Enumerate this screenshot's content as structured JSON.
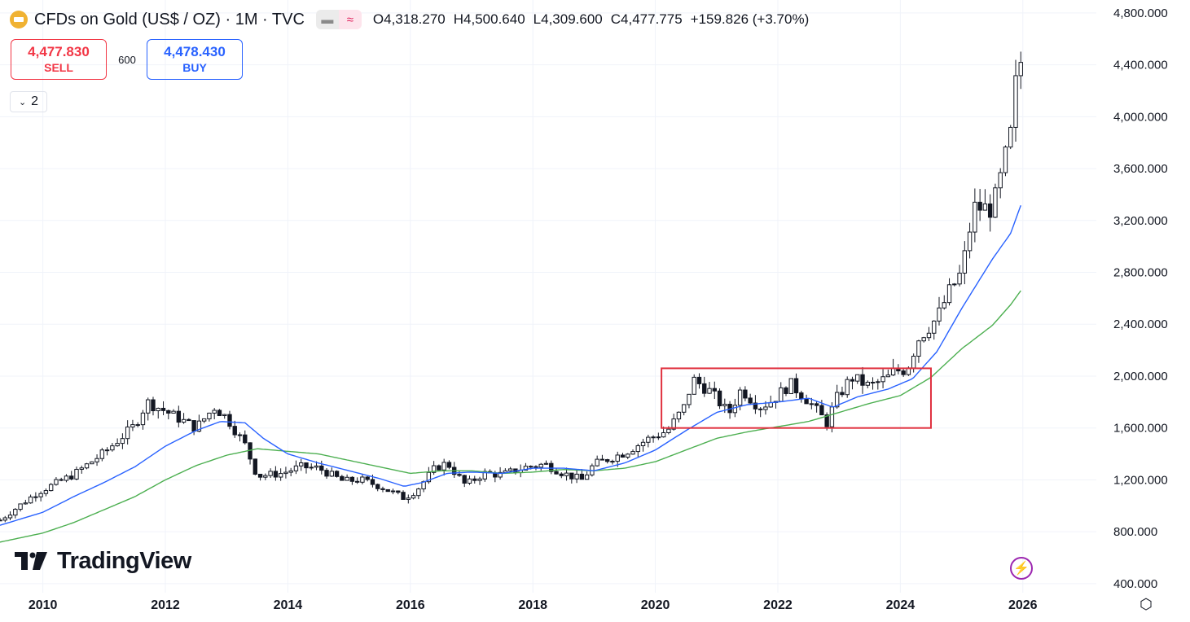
{
  "header": {
    "symbol_title": "CFDs on Gold (US$ / OZ) · 1M · TVC",
    "icon": "gold-bars-icon",
    "open": "O4,318.270",
    "high": "H4,500.640",
    "low": "L4,309.600",
    "close": "C4,477.775",
    "change": "+159.826 (+3.70%)",
    "toggle_icons": [
      "minus-icon",
      "wave-icon"
    ]
  },
  "trade": {
    "sell_price": "4,477.830",
    "sell_label": "SELL",
    "buy_price": "4,478.430",
    "buy_label": "BUY",
    "spread": "600"
  },
  "indicators": {
    "count": "2"
  },
  "branding": {
    "logo_text": "TradingView"
  },
  "colors": {
    "up": "#131722",
    "down": "#131722",
    "ma_fast": "#2962ff",
    "ma_slow": "#4caf50",
    "highlight_box": "#e0313f",
    "sell": "#f23645",
    "buy": "#2962ff"
  },
  "chart_data": {
    "type": "candlestick",
    "x_axis_labels": [
      "2010",
      "2012",
      "2014",
      "2016",
      "2018",
      "2020",
      "2022",
      "2024",
      "2026"
    ],
    "y_axis_labels": [
      "4,800.000",
      "4,400.000",
      "4,000.000",
      "3,600.000",
      "3,200.000",
      "2,800.000",
      "2,400.000",
      "2,000.000",
      "1,600.000",
      "1,200.000",
      "800.000",
      "400.000"
    ],
    "y_ticks": [
      4800,
      4400,
      4000,
      3600,
      3200,
      2800,
      2400,
      2000,
      1600,
      1200,
      800,
      400
    ],
    "x_ticks": [
      2010,
      2012,
      2014,
      2016,
      2018,
      2020,
      2022,
      2024,
      2026
    ],
    "xlim": [
      2009.3,
      2027.2
    ],
    "ylim": [
      330,
      4900
    ],
    "candles_monthly_close_anchors": [
      [
        2009.3,
        890
      ],
      [
        2009.9,
        1100
      ],
      [
        2010.5,
        1240
      ],
      [
        2011.0,
        1410
      ],
      [
        2011.5,
        1620
      ],
      [
        2011.7,
        1800
      ],
      [
        2012.0,
        1730
      ],
      [
        2012.5,
        1600
      ],
      [
        2012.8,
        1760
      ],
      [
        2013.0,
        1680
      ],
      [
        2013.3,
        1470
      ],
      [
        2013.5,
        1230
      ],
      [
        2013.9,
        1250
      ],
      [
        2014.2,
        1300
      ],
      [
        2014.5,
        1290
      ],
      [
        2014.9,
        1190
      ],
      [
        2015.2,
        1200
      ],
      [
        2015.5,
        1150
      ],
      [
        2015.9,
        1060
      ],
      [
        2016.1,
        1120
      ],
      [
        2016.4,
        1290
      ],
      [
        2016.6,
        1330
      ],
      [
        2016.9,
        1160
      ],
      [
        2017.2,
        1250
      ],
      [
        2017.5,
        1240
      ],
      [
        2017.9,
        1300
      ],
      [
        2018.2,
        1320
      ],
      [
        2018.5,
        1250
      ],
      [
        2018.8,
        1200
      ],
      [
        2019.0,
        1320
      ],
      [
        2019.5,
        1410
      ],
      [
        2019.9,
        1520
      ],
      [
        2020.2,
        1580
      ],
      [
        2020.5,
        1780
      ],
      [
        2020.6,
        1980
      ],
      [
        2020.9,
        1880
      ],
      [
        2021.2,
        1710
      ],
      [
        2021.4,
        1900
      ],
      [
        2021.7,
        1760
      ],
      [
        2021.9,
        1810
      ],
      [
        2022.2,
        1940
      ],
      [
        2022.5,
        1810
      ],
      [
        2022.8,
        1640
      ],
      [
        2022.95,
        1820
      ],
      [
        2023.2,
        1990
      ],
      [
        2023.5,
        1920
      ],
      [
        2023.8,
        1990
      ],
      [
        2023.9,
        2040
      ],
      [
        2024.1,
        2050
      ],
      [
        2024.3,
        2290
      ],
      [
        2024.6,
        2450
      ],
      [
        2024.8,
        2650
      ],
      [
        2025.0,
        2800
      ],
      [
        2025.2,
        3300
      ],
      [
        2025.5,
        3290
      ],
      [
        2025.6,
        3450
      ],
      [
        2025.8,
        3860
      ],
      [
        2025.9,
        4320
      ],
      [
        2026.0,
        4478
      ]
    ],
    "ma_fast_anchors": [
      [
        2009.3,
        850
      ],
      [
        2010.0,
        950
      ],
      [
        2010.5,
        1070
      ],
      [
        2011.0,
        1180
      ],
      [
        2011.5,
        1300
      ],
      [
        2012.0,
        1460
      ],
      [
        2012.5,
        1580
      ],
      [
        2012.9,
        1650
      ],
      [
        2013.3,
        1640
      ],
      [
        2013.6,
        1520
      ],
      [
        2014.0,
        1400
      ],
      [
        2014.5,
        1330
      ],
      [
        2015.0,
        1270
      ],
      [
        2015.5,
        1210
      ],
      [
        2015.9,
        1150
      ],
      [
        2016.2,
        1180
      ],
      [
        2016.6,
        1250
      ],
      [
        2017.0,
        1260
      ],
      [
        2017.5,
        1250
      ],
      [
        2018.0,
        1290
      ],
      [
        2018.5,
        1290
      ],
      [
        2019.0,
        1270
      ],
      [
        2019.5,
        1330
      ],
      [
        2020.0,
        1430
      ],
      [
        2020.5,
        1580
      ],
      [
        2021.0,
        1720
      ],
      [
        2021.5,
        1780
      ],
      [
        2022.0,
        1800
      ],
      [
        2022.5,
        1830
      ],
      [
        2022.9,
        1760
      ],
      [
        2023.3,
        1840
      ],
      [
        2023.8,
        1900
      ],
      [
        2024.2,
        1980
      ],
      [
        2024.6,
        2190
      ],
      [
        2025.0,
        2520
      ],
      [
        2025.5,
        2900
      ],
      [
        2025.8,
        3100
      ],
      [
        2026.0,
        3360
      ]
    ],
    "ma_slow_anchors": [
      [
        2009.3,
        720
      ],
      [
        2010.0,
        790
      ],
      [
        2010.5,
        870
      ],
      [
        2011.0,
        970
      ],
      [
        2011.5,
        1070
      ],
      [
        2012.0,
        1200
      ],
      [
        2012.5,
        1310
      ],
      [
        2013.0,
        1390
      ],
      [
        2013.5,
        1440
      ],
      [
        2014.0,
        1420
      ],
      [
        2014.5,
        1400
      ],
      [
        2015.0,
        1350
      ],
      [
        2015.5,
        1300
      ],
      [
        2016.0,
        1250
      ],
      [
        2016.5,
        1270
      ],
      [
        2017.0,
        1270
      ],
      [
        2017.5,
        1250
      ],
      [
        2018.0,
        1260
      ],
      [
        2018.5,
        1280
      ],
      [
        2019.0,
        1270
      ],
      [
        2019.5,
        1290
      ],
      [
        2020.0,
        1340
      ],
      [
        2020.5,
        1430
      ],
      [
        2021.0,
        1520
      ],
      [
        2021.5,
        1570
      ],
      [
        2022.0,
        1610
      ],
      [
        2022.5,
        1650
      ],
      [
        2023.0,
        1720
      ],
      [
        2023.5,
        1790
      ],
      [
        2024.0,
        1850
      ],
      [
        2024.5,
        1990
      ],
      [
        2025.0,
        2210
      ],
      [
        2025.5,
        2390
      ],
      [
        2025.8,
        2550
      ],
      [
        2026.0,
        2680
      ]
    ],
    "highlight_range": {
      "x_start": 2020.1,
      "x_end": 2024.5,
      "y_low": 1600,
      "y_high": 2060
    }
  }
}
